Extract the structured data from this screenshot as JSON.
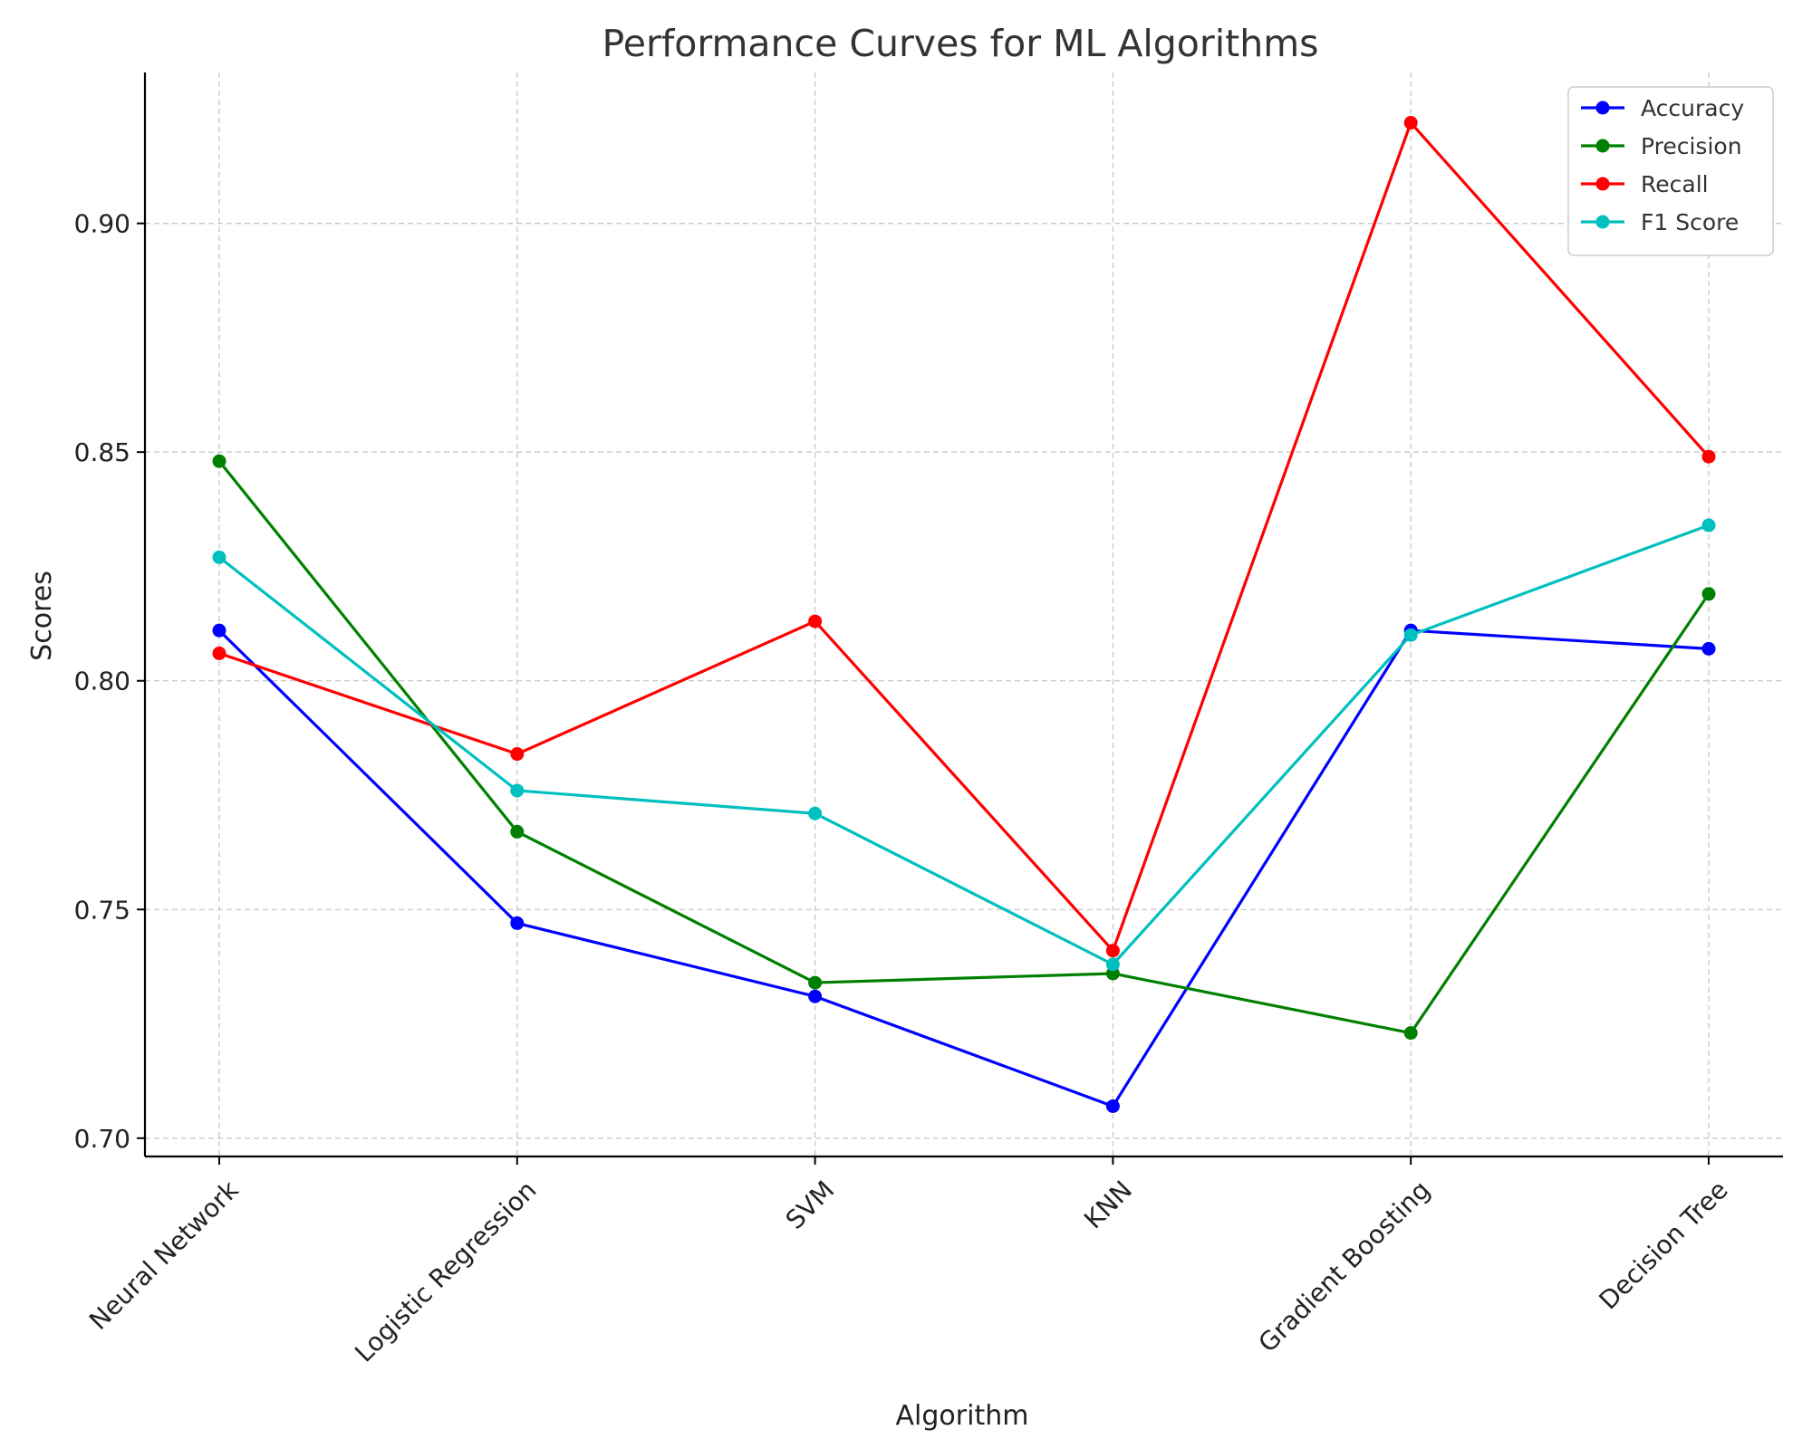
{
  "chart_data": {
    "type": "line",
    "title": "Performance Curves for ML Algorithms",
    "xlabel": "Algorithm",
    "ylabel": "Scores",
    "categories": [
      "Neural Network",
      "Logistic Regression",
      "SVM",
      "KNN",
      "Gradient Boosting",
      "Decision Tree"
    ],
    "ylim": [
      0.696,
      0.933
    ],
    "yticks": [
      0.7,
      0.75,
      0.8,
      0.85,
      0.9
    ],
    "ytick_labels": [
      "0.70",
      "0.75",
      "0.80",
      "0.85",
      "0.90"
    ],
    "grid": true,
    "legend_position": "top-right",
    "series": [
      {
        "name": "Accuracy",
        "color": "#0000ff",
        "values": [
          0.811,
          0.747,
          0.731,
          0.707,
          0.811,
          0.807
        ]
      },
      {
        "name": "Precision",
        "color": "#008000",
        "values": [
          0.848,
          0.767,
          0.734,
          0.736,
          0.723,
          0.819
        ]
      },
      {
        "name": "Recall",
        "color": "#ff0000",
        "values": [
          0.806,
          0.784,
          0.813,
          0.741,
          0.922,
          0.849
        ]
      },
      {
        "name": "F1 Score",
        "color": "#00bfbf",
        "values": [
          0.827,
          0.776,
          0.771,
          0.738,
          0.81,
          0.834
        ]
      }
    ]
  }
}
